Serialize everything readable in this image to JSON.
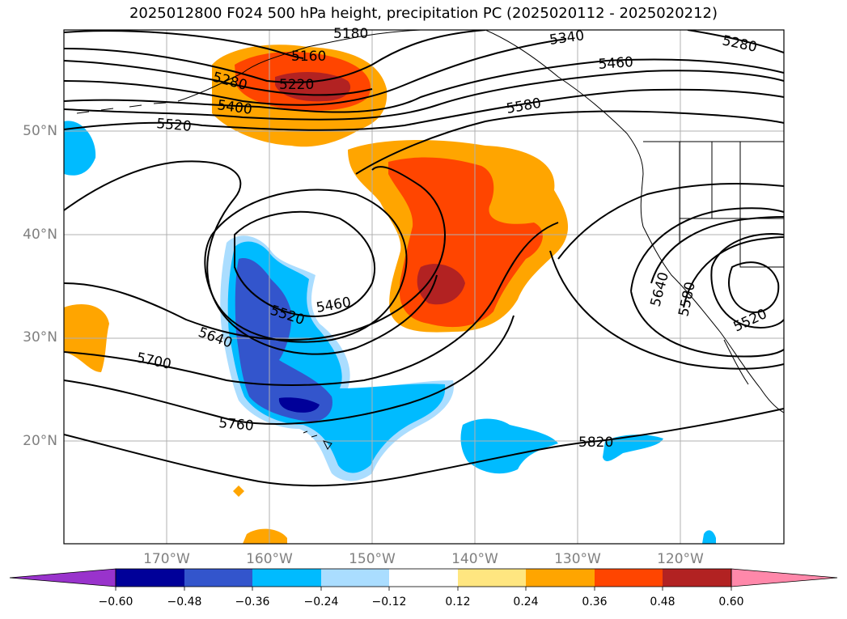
{
  "title": "2025012800 F024 500 hPa height, precipitation PC (2025020112 - 2025020212)",
  "lat_labels": [
    "50°N",
    "40°N",
    "30°N",
    "20°N"
  ],
  "lon_labels": [
    "170°W",
    "160°W",
    "150°W",
    "140°W",
    "130°W",
    "120°W"
  ],
  "contour_labels": [
    "5160",
    "5280",
    "5220",
    "5400",
    "5520",
    "5180",
    "5340",
    "5460",
    "5580",
    "5280",
    "5520",
    "5460",
    "5640",
    "5700",
    "5760",
    "5820",
    "5640",
    "5580",
    "5520"
  ],
  "colorbar": {
    "ticks": [
      "−0.60",
      "−0.48",
      "−0.36",
      "−0.24",
      "−0.12",
      "0.12",
      "0.24",
      "0.36",
      "0.48",
      "0.60"
    ],
    "colors": [
      "#9933cc",
      "#000099",
      "#3355cc",
      "#00bbff",
      "#aaddff",
      "#ffffff",
      "#ffe680",
      "#ffa500",
      "#ff4500",
      "#b22222",
      "#ff88aa"
    ]
  },
  "colors": {
    "grid": "#b0b0b0",
    "contour": "#000000",
    "label": "#808080"
  }
}
